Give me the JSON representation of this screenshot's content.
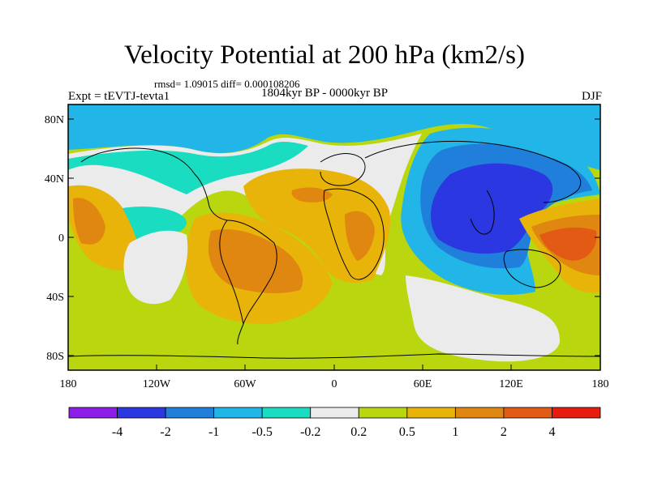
{
  "title": "Velocity Potential at 200 hPa (km2/s)",
  "stats": "rmsd= 1.09015 diff= 0.000108206",
  "subtitle": "1804kyr BP - 0000kyr BP",
  "experiment": "Expt = tEVTJ-tevta1",
  "season": "DJF",
  "lat_labels": [
    "80N",
    "40N",
    "0",
    "40S",
    "80S"
  ],
  "lon_labels": [
    "180",
    "120W",
    "60W",
    "0",
    "60E",
    "120E",
    "180"
  ],
  "colorbar": {
    "colors": [
      "#8a1ee6",
      "#2b37e1",
      "#1f7fdb",
      "#21b5e8",
      "#19dcc0",
      "#ebebeb",
      "#b9d60f",
      "#e8b40a",
      "#e08711",
      "#e35a15",
      "#e61c0e"
    ],
    "labels": [
      "-4",
      "-2",
      "-1",
      "-0.5",
      "-0.2",
      "0.2",
      "0.5",
      "1",
      "2",
      "4"
    ]
  }
}
